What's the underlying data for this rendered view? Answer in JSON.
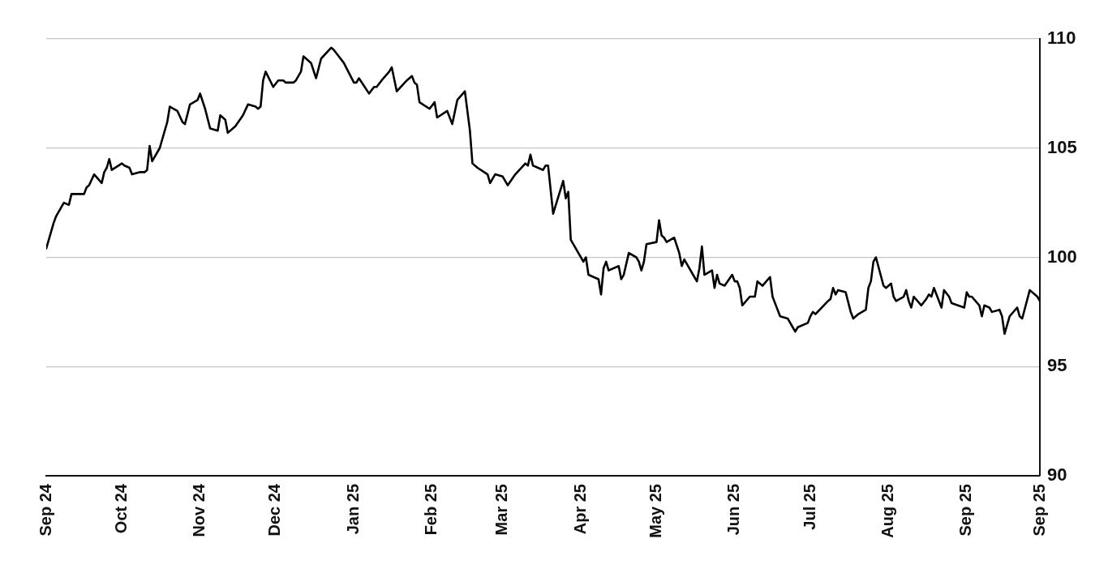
{
  "chart_data": {
    "type": "line",
    "x": [
      "2024-09-01",
      "2024-09-02",
      "2024-09-04",
      "2024-09-05",
      "2024-09-08",
      "2024-09-10",
      "2024-09-11",
      "2024-09-16",
      "2024-09-17",
      "2024-09-18",
      "2024-09-20",
      "2024-09-23",
      "2024-09-24",
      "2024-09-25",
      "2024-09-26",
      "2024-09-27",
      "2024-10-01",
      "2024-10-02",
      "2024-10-04",
      "2024-10-05",
      "2024-10-08",
      "2024-10-10",
      "2024-10-11",
      "2024-10-12",
      "2024-10-13",
      "2024-10-16",
      "2024-10-19",
      "2024-10-20",
      "2024-10-23",
      "2024-10-25",
      "2024-10-26",
      "2024-10-28",
      "2024-10-31",
      "2024-11-01",
      "2024-11-03",
      "2024-11-05",
      "2024-11-08",
      "2024-11-09",
      "2024-11-11",
      "2024-11-12",
      "2024-11-15",
      "2024-11-18",
      "2024-11-20",
      "2024-11-23",
      "2024-11-24",
      "2024-11-25",
      "2024-11-26",
      "2024-11-27",
      "2024-11-30",
      "2024-12-02",
      "2024-12-04",
      "2024-12-05",
      "2024-12-08",
      "2024-12-09",
      "2024-12-11",
      "2024-12-12",
      "2024-12-15",
      "2024-12-17",
      "2024-12-19",
      "2024-12-23",
      "2024-12-24",
      "2024-12-26",
      "2024-12-28",
      "2025-01-01",
      "2025-01-02",
      "2025-01-03",
      "2025-01-07",
      "2025-01-09",
      "2025-01-10",
      "2025-01-12",
      "2025-01-15",
      "2025-01-16",
      "2025-01-18",
      "2025-01-22",
      "2025-01-24",
      "2025-01-25",
      "2025-01-26",
      "2025-01-27",
      "2025-01-31",
      "2025-02-02",
      "2025-02-03",
      "2025-02-07",
      "2025-02-09",
      "2025-02-11",
      "2025-02-14",
      "2025-02-16",
      "2025-02-17",
      "2025-02-19",
      "2025-02-23",
      "2025-02-24",
      "2025-02-26",
      "2025-03-01",
      "2025-03-03",
      "2025-03-06",
      "2025-03-10",
      "2025-03-11",
      "2025-03-12",
      "2025-03-13",
      "2025-03-17",
      "2025-03-18",
      "2025-03-19",
      "2025-03-21",
      "2025-03-25",
      "2025-03-26",
      "2025-03-27",
      "2025-03-28",
      "2025-04-02",
      "2025-04-03",
      "2025-04-04",
      "2025-04-08",
      "2025-04-09",
      "2025-04-10",
      "2025-04-11",
      "2025-04-12",
      "2025-04-16",
      "2025-04-17",
      "2025-04-18",
      "2025-04-20",
      "2025-04-23",
      "2025-04-24",
      "2025-04-25",
      "2025-04-26",
      "2025-04-27",
      "2025-05-01",
      "2025-05-02",
      "2025-05-03",
      "2025-05-04",
      "2025-05-05",
      "2025-05-08",
      "2025-05-10",
      "2025-05-11",
      "2025-05-12",
      "2025-05-16",
      "2025-05-17",
      "2025-05-18",
      "2025-05-19",
      "2025-05-20",
      "2025-05-23",
      "2025-05-24",
      "2025-05-25",
      "2025-05-26",
      "2025-05-28",
      "2025-05-31",
      "2025-06-01",
      "2025-06-02",
      "2025-06-03",
      "2025-06-04",
      "2025-06-07",
      "2025-06-09",
      "2025-06-10",
      "2025-06-12",
      "2025-06-15",
      "2025-06-16",
      "2025-06-17",
      "2025-06-19",
      "2025-06-22",
      "2025-06-24",
      "2025-06-25",
      "2025-06-26",
      "2025-06-30",
      "2025-07-01",
      "2025-07-02",
      "2025-07-03",
      "2025-07-08",
      "2025-07-09",
      "2025-07-10",
      "2025-07-11",
      "2025-07-12",
      "2025-07-15",
      "2025-07-17",
      "2025-07-18",
      "2025-07-20",
      "2025-07-23",
      "2025-07-24",
      "2025-07-25",
      "2025-07-26",
      "2025-07-27",
      "2025-07-30",
      "2025-07-31",
      "2025-08-02",
      "2025-08-03",
      "2025-08-04",
      "2025-08-07",
      "2025-08-08",
      "2025-08-09",
      "2025-08-10",
      "2025-08-11",
      "2025-08-14",
      "2025-08-16",
      "2025-08-17",
      "2025-08-18",
      "2025-08-19",
      "2025-08-22",
      "2025-08-23",
      "2025-08-25",
      "2025-08-26",
      "2025-08-31",
      "2025-09-01",
      "2025-09-02",
      "2025-09-03",
      "2025-09-06",
      "2025-09-07",
      "2025-09-08",
      "2025-09-10",
      "2025-09-11",
      "2025-09-14",
      "2025-09-15",
      "2025-09-16",
      "2025-09-18",
      "2025-09-21",
      "2025-09-22",
      "2025-09-23",
      "2025-09-26",
      "2025-09-29",
      "2025-09-30"
    ],
    "series": [
      {
        "color": "#000000",
        "values": [
          100.4,
          100.8,
          101.6,
          101.9,
          102.5,
          102.4,
          102.9,
          102.9,
          103.2,
          103.3,
          103.8,
          103.4,
          103.9,
          104.1,
          104.5,
          104.0,
          104.3,
          104.2,
          104.1,
          103.8,
          103.9,
          103.9,
          104.0,
          105.1,
          104.4,
          105.0,
          106.2,
          106.9,
          106.7,
          106.2,
          106.1,
          107.0,
          107.2,
          107.5,
          106.8,
          105.9,
          105.8,
          106.5,
          106.3,
          105.7,
          106.0,
          106.5,
          107.0,
          106.9,
          106.8,
          106.9,
          108.1,
          108.5,
          107.8,
          108.1,
          108.1,
          108.0,
          108.0,
          108.1,
          108.5,
          109.2,
          108.9,
          108.2,
          109.1,
          109.6,
          109.5,
          109.2,
          108.9,
          108.0,
          108.0,
          108.2,
          107.5,
          107.8,
          107.8,
          108.1,
          108.5,
          108.7,
          107.6,
          108.1,
          108.3,
          108.0,
          107.9,
          107.1,
          106.8,
          107.1,
          106.4,
          106.7,
          106.1,
          107.2,
          107.6,
          105.8,
          104.3,
          104.1,
          103.8,
          103.4,
          103.8,
          103.7,
          103.3,
          103.8,
          104.3,
          104.2,
          104.7,
          104.2,
          104.0,
          104.2,
          104.2,
          102.0,
          103.5,
          102.7,
          103.0,
          100.8,
          99.8,
          100.0,
          99.2,
          99.0,
          98.3,
          99.5,
          99.8,
          99.4,
          99.6,
          99.0,
          99.2,
          100.2,
          100.0,
          99.8,
          99.4,
          99.8,
          100.6,
          100.7,
          101.7,
          101.0,
          100.9,
          100.7,
          100.9,
          100.2,
          99.6,
          99.9,
          99.1,
          98.9,
          99.5,
          100.5,
          99.2,
          99.4,
          98.6,
          99.2,
          98.8,
          98.7,
          99.2,
          98.9,
          98.9,
          98.6,
          97.8,
          98.2,
          98.2,
          98.9,
          98.7,
          99.1,
          98.2,
          97.9,
          97.3,
          97.2,
          96.8,
          96.6,
          96.8,
          97.0,
          97.3,
          97.5,
          97.4,
          98.0,
          98.1,
          98.6,
          98.3,
          98.5,
          98.4,
          97.5,
          97.2,
          97.4,
          97.6,
          98.6,
          98.9,
          99.8,
          100.0,
          98.7,
          98.6,
          98.8,
          98.2,
          98.0,
          98.2,
          98.5,
          98.0,
          97.7,
          98.2,
          97.8,
          98.1,
          98.3,
          98.2,
          98.6,
          97.7,
          98.5,
          98.2,
          97.9,
          97.7,
          98.4,
          98.2,
          98.2,
          97.8,
          97.3,
          97.8,
          97.7,
          97.5,
          97.6,
          97.3,
          96.5,
          97.3,
          97.7,
          97.3,
          97.2,
          98.5,
          98.2,
          98.0
        ]
      }
    ],
    "xlim": [
      "2024-09-01",
      "2025-09-30"
    ],
    "xticks": [
      {
        "value": "2024-09-01",
        "label": "Sep 24"
      },
      {
        "value": "2024-10-01",
        "label": "Oct 24"
      },
      {
        "value": "2024-11-01",
        "label": "Nov 24"
      },
      {
        "value": "2024-12-01",
        "label": "Dec 24"
      },
      {
        "value": "2025-01-01",
        "label": "Jan 25"
      },
      {
        "value": "2025-02-01",
        "label": "Feb 25"
      },
      {
        "value": "2025-03-01",
        "label": "Mar 25"
      },
      {
        "value": "2025-04-01",
        "label": "Apr 25"
      },
      {
        "value": "2025-05-01",
        "label": "May 25"
      },
      {
        "value": "2025-06-01",
        "label": "Jun 25"
      },
      {
        "value": "2025-07-01",
        "label": "Jul 25"
      },
      {
        "value": "2025-08-01",
        "label": "Aug 25"
      },
      {
        "value": "2025-09-01",
        "label": "Sep 25"
      },
      {
        "value": "2025-09-30",
        "label": "Sep 25"
      }
    ],
    "ylim": [
      90,
      110
    ],
    "yticks": [
      90,
      95,
      100,
      105,
      110
    ],
    "grid": "y",
    "marker": "none",
    "line_style": "solid"
  }
}
